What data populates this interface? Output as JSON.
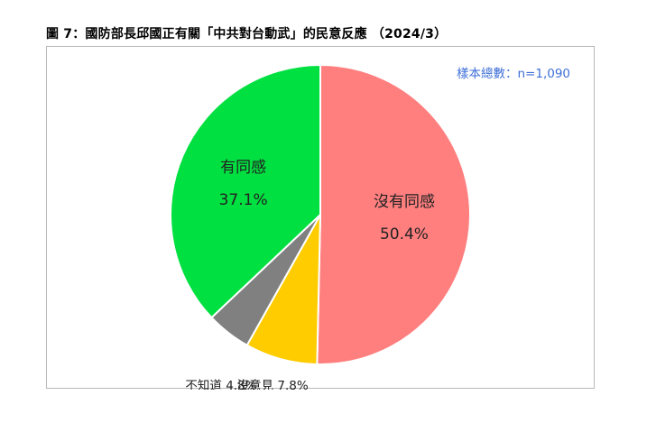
{
  "title": "圖 7：國防部長邱國正有關「中共對台動武」的民意反應 （2024/3）",
  "sample_note": "樣本總數：n=1,090",
  "chart_data": {
    "type": "pie",
    "start_angle_deg": 0,
    "direction": "clockwise",
    "slices": [
      {
        "label": "沒有同感",
        "value": 50.4,
        "display": "50.4%",
        "color": "#ff7f7f",
        "label_position": "inside"
      },
      {
        "label": "沒意見",
        "value": 7.8,
        "display": "7.8%",
        "color": "#ffcc00",
        "label_position": "outside"
      },
      {
        "label": "不知道",
        "value": 4.8,
        "display": "4.8%",
        "color": "#808080",
        "label_position": "outside"
      },
      {
        "label": "有同感",
        "value": 37.1,
        "display": "37.1%",
        "color": "#00e040",
        "label_position": "inside"
      }
    ]
  }
}
